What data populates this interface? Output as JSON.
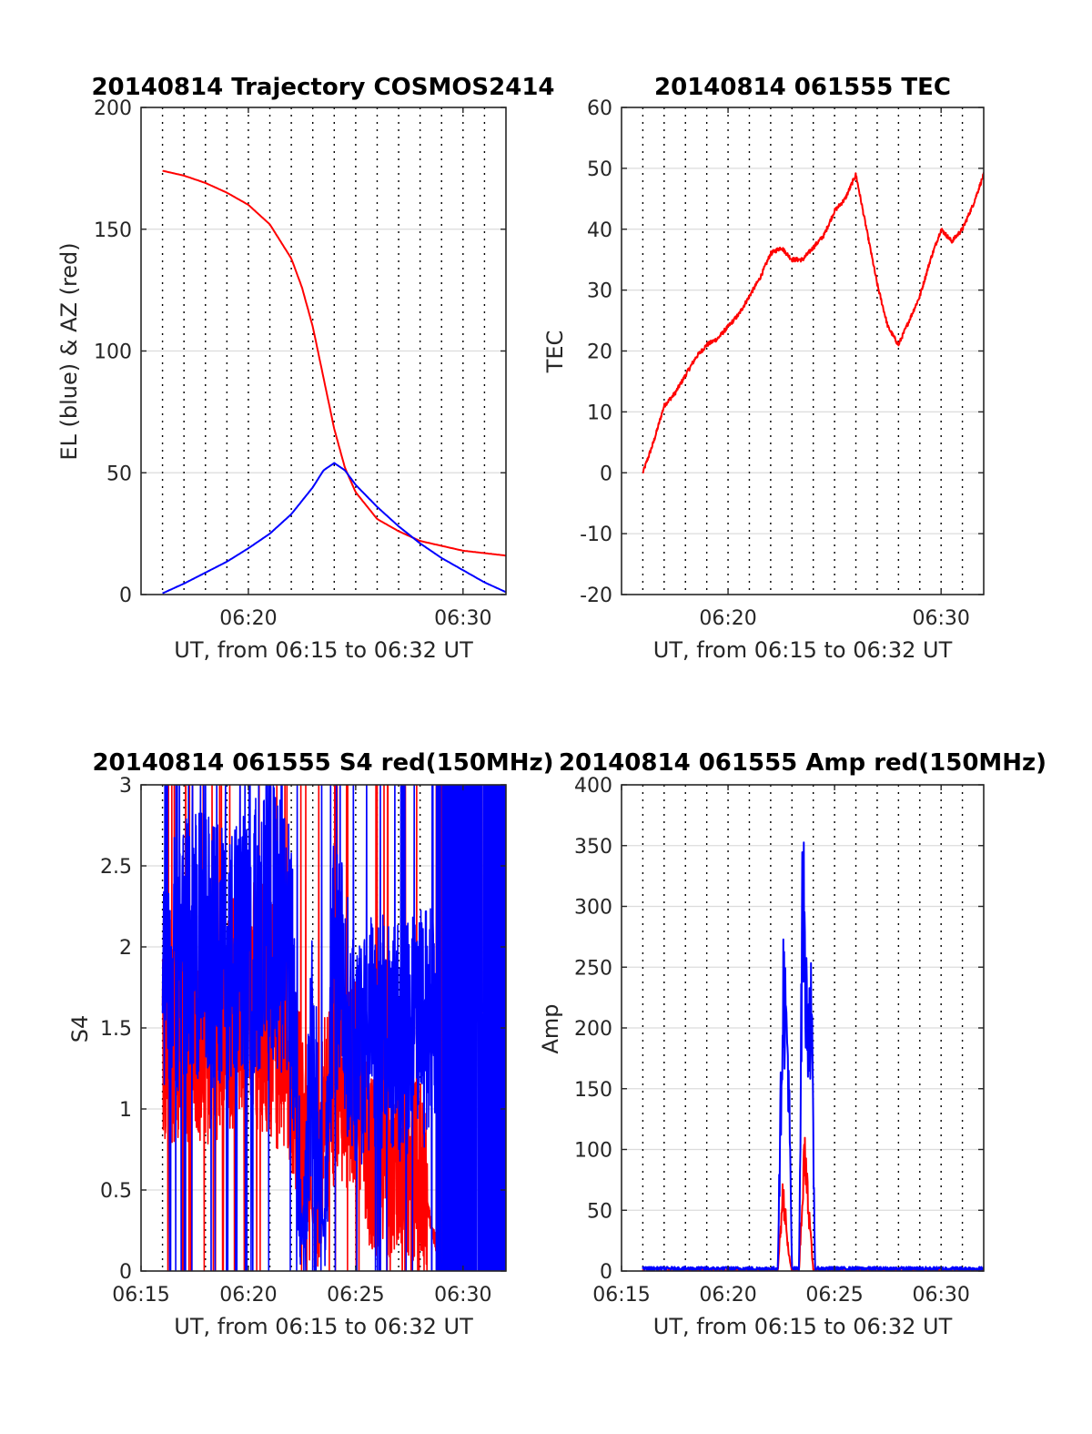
{
  "chart_data": [
    {
      "type": "line",
      "title": "20140814 Trajectory COSMOS2414",
      "xlabel": "UT, from 06:15 to 06:32 UT",
      "ylabel": "EL (blue) & AZ (red)",
      "xlim": [
        "06:15",
        "06:32"
      ],
      "ylim": [
        0,
        200
      ],
      "xticks": [
        "06:20",
        "06:30"
      ],
      "yticks": [
        "0",
        "50",
        "100",
        "150",
        "200"
      ],
      "grid": true,
      "series": [
        {
          "color": "#ff0000",
          "x": [
            "06:16",
            "06:17",
            "06:18",
            "06:19",
            "06:20",
            "06:21",
            "06:22",
            "06:22:30",
            "06:23",
            "06:23:30",
            "06:24",
            "06:24:30",
            "06:25",
            "06:26",
            "06:27",
            "06:28",
            "06:29",
            "06:30",
            "06:31",
            "06:32"
          ],
          "values": [
            174,
            172,
            169,
            165,
            160,
            152,
            138,
            126,
            110,
            89,
            68,
            52,
            42,
            31,
            26,
            22,
            20,
            18,
            17,
            16
          ]
        },
        {
          "color": "#0000ff",
          "x": [
            "06:16",
            "06:17",
            "06:18",
            "06:19",
            "06:20",
            "06:21",
            "06:22",
            "06:23",
            "06:23:30",
            "06:24",
            "06:24:30",
            "06:25",
            "06:26",
            "06:27",
            "06:28",
            "06:29",
            "06:30",
            "06:31",
            "06:32"
          ],
          "values": [
            0.5,
            4.5,
            9,
            13.5,
            19,
            25,
            33,
            44,
            51,
            54,
            51,
            45,
            36,
            28,
            21,
            15,
            10,
            5,
            1
          ]
        }
      ]
    },
    {
      "type": "line",
      "title": "20140814 061555 TEC",
      "xlabel": "UT, from 06:15 to 06:32 UT",
      "ylabel": "TEC",
      "xlim": [
        "06:15",
        "06:32"
      ],
      "ylim": [
        -20,
        60
      ],
      "xticks": [
        "06:20",
        "06:30"
      ],
      "yticks": [
        "-20",
        "-10",
        "0",
        "10",
        "20",
        "30",
        "40",
        "50",
        "60"
      ],
      "grid": true,
      "series": [
        {
          "color": "#ff0000",
          "x": [
            "06:16",
            "06:16:30",
            "06:17",
            "06:17:30",
            "06:18",
            "06:18:30",
            "06:19",
            "06:19:30",
            "06:20",
            "06:20:30",
            "06:21",
            "06:21:30",
            "06:22",
            "06:22:30",
            "06:23",
            "06:23:30",
            "06:24",
            "06:24:30",
            "06:25",
            "06:25:30",
            "06:26",
            "06:26:30",
            "06:27",
            "06:27:30",
            "06:28",
            "06:28:30",
            "06:29",
            "06:29:30",
            "06:30",
            "06:30:30",
            "06:31",
            "06:31:30",
            "06:32"
          ],
          "values": [
            0,
            5,
            11,
            13,
            16,
            19,
            21,
            22,
            24,
            26,
            29,
            32,
            36,
            37,
            35,
            35,
            37,
            39,
            43,
            45,
            49,
            40,
            31,
            24,
            21,
            25,
            29,
            35,
            40,
            38,
            40,
            44,
            49
          ]
        }
      ]
    },
    {
      "type": "line",
      "title": "20140814 061555 S4 red(150MHz)",
      "xlabel": "UT, from 06:15 to 06:32 UT",
      "ylabel": "S4",
      "xlim": [
        "06:15",
        "06:32"
      ],
      "ylim": [
        0,
        3
      ],
      "xticks": [
        "06:15",
        "06:20",
        "06:25",
        "06:30"
      ],
      "yticks": [
        "0",
        "0.5",
        "1",
        "1.5",
        "2",
        "2.5",
        "3"
      ],
      "grid": true,
      "series": [
        {
          "color": "#ff0000",
          "x": [
            "06:16",
            "06:17",
            "06:18",
            "06:19",
            "06:20",
            "06:21",
            "06:22",
            "06:22:30",
            "06:23",
            "06:23:30",
            "06:24",
            "06:25",
            "06:26",
            "06:27",
            "06:28",
            "06:29",
            "06:30",
            "06:31",
            "06:32"
          ],
          "values": [
            1.5,
            1.5,
            1.5,
            1.6,
            1.7,
            1.6,
            1.3,
            0.9,
            0.3,
            0.9,
            1.2,
            1.2,
            0.5,
            0.7,
            0.6,
            0,
            0,
            0,
            0
          ]
        },
        {
          "color": "#0000ff",
          "x": [
            "06:16",
            "06:17",
            "06:18",
            "06:19",
            "06:20",
            "06:21",
            "06:22",
            "06:22:30",
            "06:23",
            "06:23:30",
            "06:24",
            "06:25",
            "06:26",
            "06:27",
            "06:28",
            "06:29",
            "06:30",
            "06:31",
            "06:32"
          ],
          "values": [
            1.8,
            2.0,
            2.0,
            1.9,
            2.0,
            2.2,
            1.9,
            0.2,
            1.5,
            0.2,
            2.0,
            1.3,
            1.5,
            1.4,
            1.5,
            1.5,
            1.5,
            1.5,
            1.5
          ]
        }
      ]
    },
    {
      "type": "line",
      "title": "20140814 061555 Amp red(150MHz)",
      "xlabel": "UT, from 06:15 to 06:32 UT",
      "ylabel": "Amp",
      "xlim": [
        "06:15",
        "06:32"
      ],
      "ylim": [
        0,
        400
      ],
      "xticks": [
        "06:15",
        "06:20",
        "06:25",
        "06:30"
      ],
      "yticks": [
        "0",
        "50",
        "100",
        "150",
        "200",
        "250",
        "300",
        "350",
        "400"
      ],
      "grid": true,
      "series": [
        {
          "color": "#ff0000",
          "x": [
            "06:16",
            "06:22",
            "06:22:20",
            "06:22:35",
            "06:22:50",
            "06:23",
            "06:23:20",
            "06:23:35",
            "06:23:50",
            "06:24",
            "06:32"
          ],
          "values": [
            0,
            0,
            0,
            65,
            15,
            0,
            0,
            95,
            40,
            0,
            0
          ]
        },
        {
          "color": "#0000ff",
          "x": [
            "06:16",
            "06:22",
            "06:22:20",
            "06:22:35",
            "06:22:50",
            "06:23",
            "06:23:20",
            "06:23:30",
            "06:23:40",
            "06:23:55",
            "06:24:05",
            "06:32"
          ],
          "values": [
            2,
            2,
            2,
            238,
            170,
            2,
            2,
            323,
            215,
            205,
            2,
            2
          ]
        }
      ]
    }
  ]
}
